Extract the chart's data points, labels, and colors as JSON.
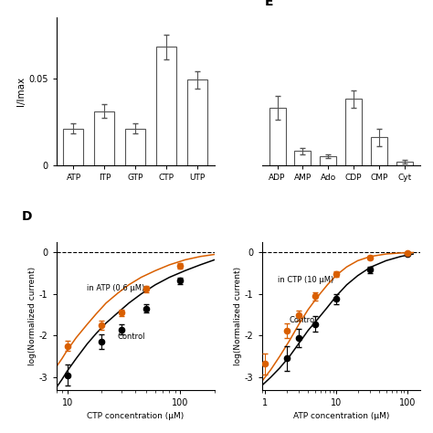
{
  "panel_B": {
    "categories": [
      "ATP",
      "ITP",
      "GTP",
      "CTP",
      "UTP"
    ],
    "values": [
      0.021,
      0.031,
      0.021,
      0.068,
      0.049
    ],
    "errors": [
      0.003,
      0.004,
      0.003,
      0.007,
      0.005
    ],
    "ylabel": "I/Imax",
    "ylim": [
      0,
      0.085
    ],
    "yticks": [
      0,
      0.05
    ]
  },
  "panel_C": {
    "categories": [
      "ADP",
      "AMP",
      "Ado",
      "CDP",
      "CMP",
      "Cyt"
    ],
    "values": [
      0.033,
      0.008,
      0.005,
      0.038,
      0.016,
      0.002
    ],
    "errors": [
      0.007,
      0.002,
      0.001,
      0.005,
      0.005,
      0.001
    ],
    "ylim": [
      0,
      0.085
    ],
    "yticks": []
  },
  "panel_D": {
    "xlabel": "CTP concentration (μM)",
    "ylabel": "log(Normalized current)",
    "xlim_log": [
      8,
      200
    ],
    "ylim": [
      -3.3,
      0.25
    ],
    "yticks": [
      -3,
      -2,
      -1,
      0
    ],
    "control_x": [
      10,
      20,
      30,
      50,
      100
    ],
    "control_y": [
      -2.95,
      -2.15,
      -1.85,
      -1.35,
      -0.68
    ],
    "control_err": [
      0.25,
      0.18,
      0.12,
      0.1,
      0.08
    ],
    "atp_x": [
      10,
      20,
      30,
      50,
      100
    ],
    "atp_y": [
      -2.25,
      -1.75,
      -1.45,
      -0.88,
      -0.32
    ],
    "atp_err": [
      0.12,
      0.1,
      0.08,
      0.07,
      0.06
    ],
    "control_fit_x": [
      8,
      9,
      10,
      12,
      15,
      18,
      22,
      28,
      35,
      45,
      60,
      80,
      110,
      150,
      200
    ],
    "control_fit_y": [
      -3.25,
      -3.05,
      -2.85,
      -2.55,
      -2.2,
      -1.95,
      -1.7,
      -1.45,
      -1.22,
      -1.0,
      -0.78,
      -0.6,
      -0.44,
      -0.3,
      -0.18
    ],
    "atp_fit_x": [
      8,
      9,
      10,
      12,
      15,
      18,
      22,
      28,
      35,
      45,
      60,
      80,
      110,
      150,
      200
    ],
    "atp_fit_y": [
      -2.75,
      -2.55,
      -2.35,
      -2.05,
      -1.73,
      -1.48,
      -1.22,
      -0.98,
      -0.78,
      -0.6,
      -0.44,
      -0.3,
      -0.18,
      -0.1,
      -0.05
    ],
    "annotation_atp": "in ATP (0.6 μM)",
    "annotation_ctrl": "Control",
    "ann_atp_x": 15,
    "ann_atp_y": -0.92,
    "ann_ctrl_x": 28,
    "ann_ctrl_y": -2.08
  },
  "panel_E": {
    "xlabel": "ATP concentration (μM)",
    "ylabel": "log(Normalized current)",
    "xlim_log": [
      0.9,
      150
    ],
    "ylim": [
      -3.3,
      0.25
    ],
    "yticks": [
      -3,
      -2,
      -1,
      0
    ],
    "control_x": [
      2,
      3,
      5,
      10,
      30,
      100
    ],
    "control_y": [
      -2.55,
      -2.05,
      -1.72,
      -1.12,
      -0.42,
      -0.04
    ],
    "control_err": [
      0.3,
      0.22,
      0.18,
      0.12,
      0.07,
      0.03
    ],
    "ctp_x": [
      1,
      2,
      3,
      5,
      10,
      30,
      100
    ],
    "ctp_y": [
      -2.68,
      -1.88,
      -1.52,
      -1.05,
      -0.52,
      -0.12,
      -0.02
    ],
    "ctp_err": [
      0.25,
      0.18,
      0.12,
      0.1,
      0.07,
      0.04,
      0.02
    ],
    "control_fit_x": [
      0.9,
      1.2,
      1.6,
      2.2,
      3,
      4,
      5.5,
      7.5,
      10,
      14,
      20,
      30,
      50,
      80,
      120
    ],
    "control_fit_y": [
      -3.2,
      -3.0,
      -2.78,
      -2.5,
      -2.18,
      -1.88,
      -1.6,
      -1.32,
      -1.05,
      -0.78,
      -0.56,
      -0.36,
      -0.2,
      -0.1,
      -0.04
    ],
    "ctp_fit_x": [
      0.9,
      1.2,
      1.6,
      2.2,
      3,
      4,
      5.5,
      7.5,
      10,
      14,
      20,
      30,
      50,
      80,
      120
    ],
    "ctp_fit_y": [
      -3.1,
      -2.82,
      -2.5,
      -2.12,
      -1.72,
      -1.38,
      -1.06,
      -0.78,
      -0.55,
      -0.35,
      -0.2,
      -0.1,
      -0.04,
      -0.015,
      -0.005
    ],
    "annotation_ctp": "in CTP (10 μM)",
    "annotation_ctrl": "Control",
    "ann_ctp_x": 1.5,
    "ann_ctp_y": -0.72,
    "ann_ctrl_x": 2.2,
    "ann_ctrl_y": -1.68
  },
  "colors": {
    "bar_face": "#ffffff",
    "bar_edge": "#555555",
    "control_color": "#000000",
    "treatment_color": "#d95f00",
    "background": "#ffffff"
  }
}
